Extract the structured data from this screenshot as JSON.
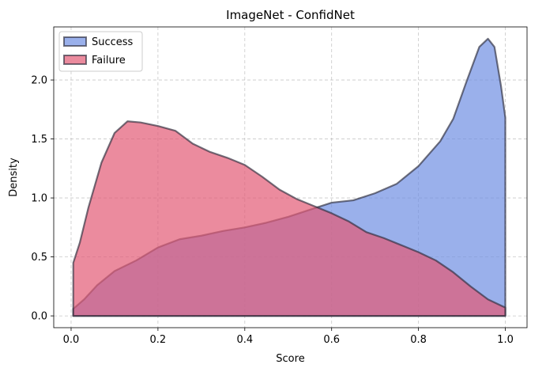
{
  "chart_data": {
    "type": "area",
    "title": "ImageNet - ConfidNet",
    "xlabel": "Score",
    "ylabel": "Density",
    "xlim": [
      -0.04,
      1.05
    ],
    "ylim": [
      -0.1,
      2.45
    ],
    "xticks": [
      0.0,
      0.2,
      0.4,
      0.6,
      0.8,
      1.0
    ],
    "xtick_labels": [
      "0.0",
      "0.2",
      "0.4",
      "0.6",
      "0.8",
      "1.0"
    ],
    "yticks": [
      0.0,
      0.5,
      1.0,
      1.5,
      2.0
    ],
    "ytick_labels": [
      "0.0",
      "0.5",
      "1.0",
      "1.5",
      "2.0"
    ],
    "grid": true,
    "legend_position": "top-left",
    "series": [
      {
        "name": "Success",
        "color": "#6f8fe3",
        "points": [
          [
            0.005,
            0.06
          ],
          [
            0.03,
            0.14
          ],
          [
            0.06,
            0.26
          ],
          [
            0.1,
            0.38
          ],
          [
            0.15,
            0.47
          ],
          [
            0.2,
            0.58
          ],
          [
            0.25,
            0.65
          ],
          [
            0.3,
            0.68
          ],
          [
            0.35,
            0.72
          ],
          [
            0.4,
            0.75
          ],
          [
            0.45,
            0.79
          ],
          [
            0.5,
            0.84
          ],
          [
            0.55,
            0.9
          ],
          [
            0.6,
            0.96
          ],
          [
            0.65,
            0.98
          ],
          [
            0.7,
            1.04
          ],
          [
            0.75,
            1.12
          ],
          [
            0.8,
            1.27
          ],
          [
            0.85,
            1.48
          ],
          [
            0.88,
            1.67
          ],
          [
            0.91,
            1.98
          ],
          [
            0.94,
            2.28
          ],
          [
            0.96,
            2.35
          ],
          [
            0.975,
            2.28
          ],
          [
            0.99,
            1.95
          ],
          [
            1.0,
            1.68
          ]
        ]
      },
      {
        "name": "Failure",
        "color": "#e25a75",
        "points": [
          [
            0.005,
            0.45
          ],
          [
            0.02,
            0.62
          ],
          [
            0.04,
            0.92
          ],
          [
            0.07,
            1.3
          ],
          [
            0.1,
            1.55
          ],
          [
            0.13,
            1.65
          ],
          [
            0.16,
            1.64
          ],
          [
            0.2,
            1.61
          ],
          [
            0.24,
            1.57
          ],
          [
            0.28,
            1.46
          ],
          [
            0.32,
            1.39
          ],
          [
            0.36,
            1.34
          ],
          [
            0.4,
            1.28
          ],
          [
            0.44,
            1.18
          ],
          [
            0.48,
            1.07
          ],
          [
            0.52,
            0.99
          ],
          [
            0.56,
            0.93
          ],
          [
            0.6,
            0.87
          ],
          [
            0.64,
            0.8
          ],
          [
            0.68,
            0.71
          ],
          [
            0.72,
            0.66
          ],
          [
            0.76,
            0.6
          ],
          [
            0.8,
            0.54
          ],
          [
            0.84,
            0.47
          ],
          [
            0.88,
            0.37
          ],
          [
            0.92,
            0.25
          ],
          [
            0.96,
            0.14
          ],
          [
            1.0,
            0.07
          ]
        ]
      }
    ]
  }
}
